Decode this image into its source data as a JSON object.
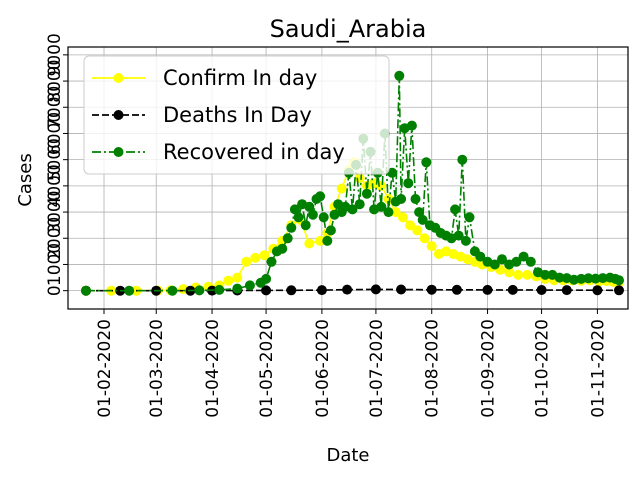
{
  "chart_data": {
    "type": "line",
    "title": "Saudi_Arabia",
    "xlabel": "Date",
    "ylabel": "Cases",
    "grid": true,
    "legend_position": "top-left",
    "x_range": [
      "2020-01-12",
      "2020-11-18"
    ],
    "y_range": [
      -700,
      9300
    ],
    "x_tick_labels": [
      "01-02-2020",
      "01-03-2020",
      "01-04-2020",
      "01-05-2020",
      "01-06-2020",
      "01-07-2020",
      "01-08-2020",
      "01-09-2020",
      "01-10-2020",
      "01-11-2020"
    ],
    "x_tick_dates": [
      "2020-02-01",
      "2020-03-01",
      "2020-04-01",
      "2020-05-01",
      "2020-06-01",
      "2020-07-01",
      "2020-08-01",
      "2020-09-01",
      "2020-10-01",
      "2020-11-01"
    ],
    "y_tick_labels": [
      "0",
      "1000",
      "2000",
      "3000",
      "4000",
      "5000",
      "6000",
      "7000",
      "8000",
      "9000"
    ],
    "y_tick_values": [
      0,
      1000,
      2000,
      3000,
      4000,
      5000,
      6000,
      7000,
      8000,
      9000
    ],
    "series": [
      {
        "name": "Confirm In day",
        "color": "#ffff00",
        "linestyle": "solid",
        "points": [
          [
            "2020-01-22",
            0
          ],
          [
            "2020-02-05",
            0
          ],
          [
            "2020-02-19",
            0
          ],
          [
            "2020-03-02",
            5
          ],
          [
            "2020-03-09",
            15
          ],
          [
            "2020-03-16",
            60
          ],
          [
            "2020-03-23",
            120
          ],
          [
            "2020-03-30",
            150
          ],
          [
            "2020-04-05",
            200
          ],
          [
            "2020-04-10",
            380
          ],
          [
            "2020-04-15",
            500
          ],
          [
            "2020-04-20",
            1100
          ],
          [
            "2020-04-25",
            1250
          ],
          [
            "2020-04-30",
            1350
          ],
          [
            "2020-05-05",
            1600
          ],
          [
            "2020-05-10",
            1900
          ],
          [
            "2020-05-15",
            2500
          ],
          [
            "2020-05-20",
            2700
          ],
          [
            "2020-05-25",
            1800
          ],
          [
            "2020-05-31",
            1900
          ],
          [
            "2020-06-04",
            2200
          ],
          [
            "2020-06-08",
            3200
          ],
          [
            "2020-06-12",
            3900
          ],
          [
            "2020-06-16",
            4600
          ],
          [
            "2020-06-19",
            4900
          ],
          [
            "2020-06-22",
            4300
          ],
          [
            "2020-06-26",
            4000
          ],
          [
            "2020-06-30",
            4100
          ],
          [
            "2020-07-04",
            4000
          ],
          [
            "2020-07-08",
            3500
          ],
          [
            "2020-07-12",
            3000
          ],
          [
            "2020-07-16",
            2800
          ],
          [
            "2020-07-20",
            2500
          ],
          [
            "2020-07-24",
            2300
          ],
          [
            "2020-07-28",
            2000
          ],
          [
            "2020-08-01",
            1700
          ],
          [
            "2020-08-05",
            1400
          ],
          [
            "2020-08-09",
            1500
          ],
          [
            "2020-08-13",
            1400
          ],
          [
            "2020-08-17",
            1300
          ],
          [
            "2020-08-21",
            1200
          ],
          [
            "2020-08-25",
            1100
          ],
          [
            "2020-08-29",
            1000
          ],
          [
            "2020-09-03",
            900
          ],
          [
            "2020-09-08",
            800
          ],
          [
            "2020-09-13",
            700
          ],
          [
            "2020-09-18",
            600
          ],
          [
            "2020-09-23",
            600
          ],
          [
            "2020-09-28",
            550
          ],
          [
            "2020-10-03",
            450
          ],
          [
            "2020-10-08",
            400
          ],
          [
            "2020-10-13",
            400
          ],
          [
            "2020-10-18",
            390
          ],
          [
            "2020-10-23",
            380
          ],
          [
            "2020-10-28",
            390
          ],
          [
            "2020-11-02",
            360
          ],
          [
            "2020-11-06",
            370
          ],
          [
            "2020-11-10",
            330
          ],
          [
            "2020-11-13",
            320
          ]
        ]
      },
      {
        "name": "Deaths In Day",
        "color": "#000000",
        "linestyle": "dashed",
        "points": [
          [
            "2020-01-22",
            0
          ],
          [
            "2020-02-10",
            0
          ],
          [
            "2020-03-01",
            0
          ],
          [
            "2020-03-20",
            0
          ],
          [
            "2020-04-01",
            3
          ],
          [
            "2020-04-15",
            5
          ],
          [
            "2020-05-01",
            9
          ],
          [
            "2020-05-15",
            12
          ],
          [
            "2020-06-01",
            22
          ],
          [
            "2020-06-15",
            40
          ],
          [
            "2020-07-01",
            50
          ],
          [
            "2020-07-15",
            45
          ],
          [
            "2020-08-01",
            35
          ],
          [
            "2020-08-15",
            32
          ],
          [
            "2020-09-01",
            30
          ],
          [
            "2020-09-15",
            28
          ],
          [
            "2020-10-01",
            24
          ],
          [
            "2020-10-15",
            20
          ],
          [
            "2020-11-01",
            18
          ],
          [
            "2020-11-13",
            15
          ]
        ]
      },
      {
        "name": "Recovered in day",
        "color": "#008000",
        "linestyle": "dashdot",
        "points": [
          [
            "2020-01-22",
            0
          ],
          [
            "2020-02-15",
            0
          ],
          [
            "2020-03-10",
            0
          ],
          [
            "2020-03-25",
            10
          ],
          [
            "2020-04-05",
            30
          ],
          [
            "2020-04-15",
            80
          ],
          [
            "2020-04-22",
            200
          ],
          [
            "2020-04-28",
            300
          ],
          [
            "2020-05-01",
            450
          ],
          [
            "2020-05-04",
            1100
          ],
          [
            "2020-05-07",
            1500
          ],
          [
            "2020-05-10",
            1600
          ],
          [
            "2020-05-13",
            2000
          ],
          [
            "2020-05-15",
            2400
          ],
          [
            "2020-05-17",
            3100
          ],
          [
            "2020-05-19",
            2800
          ],
          [
            "2020-05-21",
            3300
          ],
          [
            "2020-05-23",
            2500
          ],
          [
            "2020-05-25",
            3200
          ],
          [
            "2020-05-27",
            2900
          ],
          [
            "2020-05-29",
            3500
          ],
          [
            "2020-05-31",
            3600
          ],
          [
            "2020-06-02",
            2800
          ],
          [
            "2020-06-04",
            1900
          ],
          [
            "2020-06-06",
            2300
          ],
          [
            "2020-06-08",
            2900
          ],
          [
            "2020-06-10",
            3300
          ],
          [
            "2020-06-12",
            3000
          ],
          [
            "2020-06-14",
            3200
          ],
          [
            "2020-06-16",
            4500
          ],
          [
            "2020-06-18",
            3100
          ],
          [
            "2020-06-20",
            4800
          ],
          [
            "2020-06-22",
            3300
          ],
          [
            "2020-06-24",
            5800
          ],
          [
            "2020-06-26",
            3700
          ],
          [
            "2020-06-28",
            5300
          ],
          [
            "2020-06-30",
            3100
          ],
          [
            "2020-07-02",
            4500
          ],
          [
            "2020-07-04",
            3200
          ],
          [
            "2020-07-06",
            6000
          ],
          [
            "2020-07-08",
            3000
          ],
          [
            "2020-07-10",
            4500
          ],
          [
            "2020-07-12",
            3400
          ],
          [
            "2020-07-14",
            8200
          ],
          [
            "2020-07-15",
            3500
          ],
          [
            "2020-07-17",
            6200
          ],
          [
            "2020-07-19",
            4100
          ],
          [
            "2020-07-21",
            6300
          ],
          [
            "2020-07-23",
            3500
          ],
          [
            "2020-07-25",
            3000
          ],
          [
            "2020-07-27",
            2700
          ],
          [
            "2020-07-29",
            4900
          ],
          [
            "2020-07-31",
            2500
          ],
          [
            "2020-08-03",
            2400
          ],
          [
            "2020-08-06",
            2200
          ],
          [
            "2020-08-09",
            2100
          ],
          [
            "2020-08-12",
            2000
          ],
          [
            "2020-08-14",
            3100
          ],
          [
            "2020-08-16",
            2100
          ],
          [
            "2020-08-18",
            5000
          ],
          [
            "2020-08-20",
            1900
          ],
          [
            "2020-08-22",
            2800
          ],
          [
            "2020-08-25",
            1500
          ],
          [
            "2020-08-28",
            1300
          ],
          [
            "2020-09-01",
            1100
          ],
          [
            "2020-09-05",
            1000
          ],
          [
            "2020-09-09",
            1200
          ],
          [
            "2020-09-13",
            1000
          ],
          [
            "2020-09-17",
            1100
          ],
          [
            "2020-09-21",
            1300
          ],
          [
            "2020-09-25",
            1100
          ],
          [
            "2020-09-29",
            700
          ],
          [
            "2020-10-03",
            600
          ],
          [
            "2020-10-07",
            600
          ],
          [
            "2020-10-11",
            500
          ],
          [
            "2020-10-15",
            480
          ],
          [
            "2020-10-19",
            420
          ],
          [
            "2020-10-23",
            450
          ],
          [
            "2020-10-27",
            470
          ],
          [
            "2020-10-31",
            460
          ],
          [
            "2020-11-04",
            480
          ],
          [
            "2020-11-08",
            500
          ],
          [
            "2020-11-11",
            450
          ],
          [
            "2020-11-13",
            400
          ]
        ]
      }
    ]
  }
}
